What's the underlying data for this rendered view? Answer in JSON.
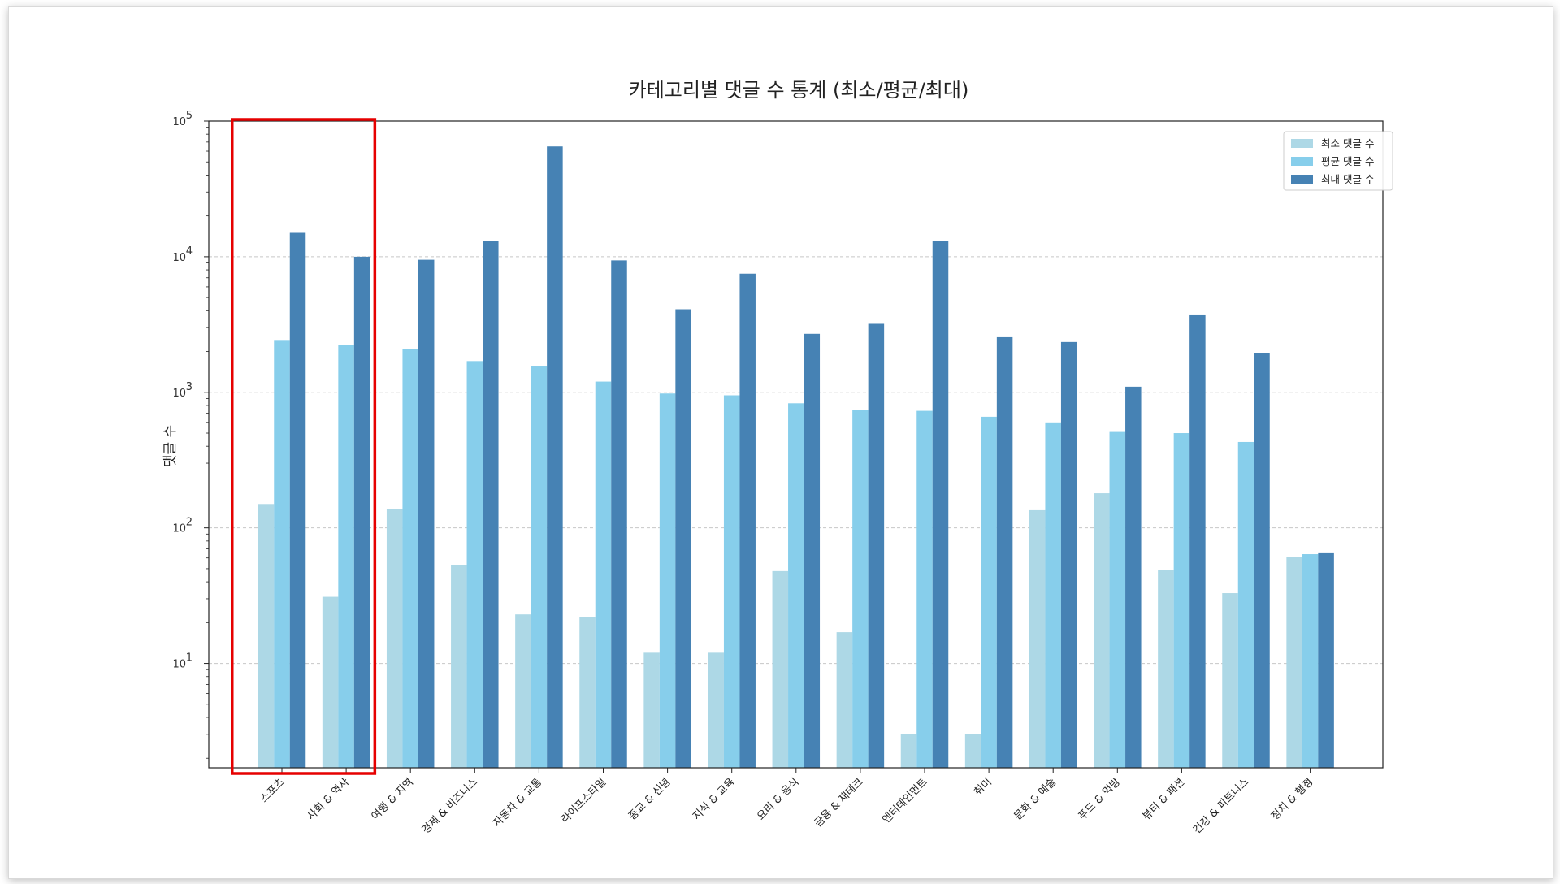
{
  "chart_data": {
    "type": "bar",
    "title": "카테고리별 댓글 수 통계 (최소/평균/최대)",
    "xlabel": "",
    "ylabel": "댓글 수",
    "yscale": "log",
    "ylim": [
      1.7,
      100000
    ],
    "yticks": [
      {
        "value": 10,
        "base": "10",
        "exp": "1"
      },
      {
        "value": 100,
        "base": "10",
        "exp": "2"
      },
      {
        "value": 1000,
        "base": "10",
        "exp": "3"
      },
      {
        "value": 10000,
        "base": "10",
        "exp": "4"
      },
      {
        "value": 100000,
        "base": "10",
        "exp": "5"
      }
    ],
    "grid": "y-dashed",
    "legend_position": "top-right",
    "categories": [
      "스포츠",
      "사회 & 역사",
      "여행 & 지역",
      "경제 & 비즈니스",
      "자동차 & 교통",
      "라이프스타일",
      "종교 & 신념",
      "지식 & 교육",
      "요리 & 음식",
      "금융 & 재테크",
      "엔터테인먼트",
      "취미",
      "문화 & 예술",
      "푸드 & 먹방",
      "뷰티 & 패션",
      "건강 & 피트니스",
      "정치 & 행정"
    ],
    "series": [
      {
        "name": "최소 댓글 수",
        "color": "#add8e6",
        "values": [
          150,
          31,
          138,
          53,
          23,
          22,
          12,
          12,
          48,
          17,
          3,
          3,
          135,
          180,
          49,
          33,
          61
        ]
      },
      {
        "name": "평균 댓글 수",
        "color": "#87ceeb",
        "values": [
          2400,
          2250,
          2100,
          1700,
          1550,
          1200,
          980,
          950,
          830,
          740,
          730,
          660,
          600,
          510,
          500,
          430,
          64
        ]
      },
      {
        "name": "최대 댓글 수",
        "color": "#4682b4",
        "values": [
          15000,
          10000,
          9500,
          13000,
          65000,
          9400,
          4100,
          7500,
          2700,
          3200,
          13000,
          2550,
          2350,
          1100,
          3700,
          1950,
          65
        ]
      }
    ],
    "highlight": {
      "categories": [
        "스포츠",
        "사회 & 역사"
      ],
      "color": "#e60000"
    }
  }
}
